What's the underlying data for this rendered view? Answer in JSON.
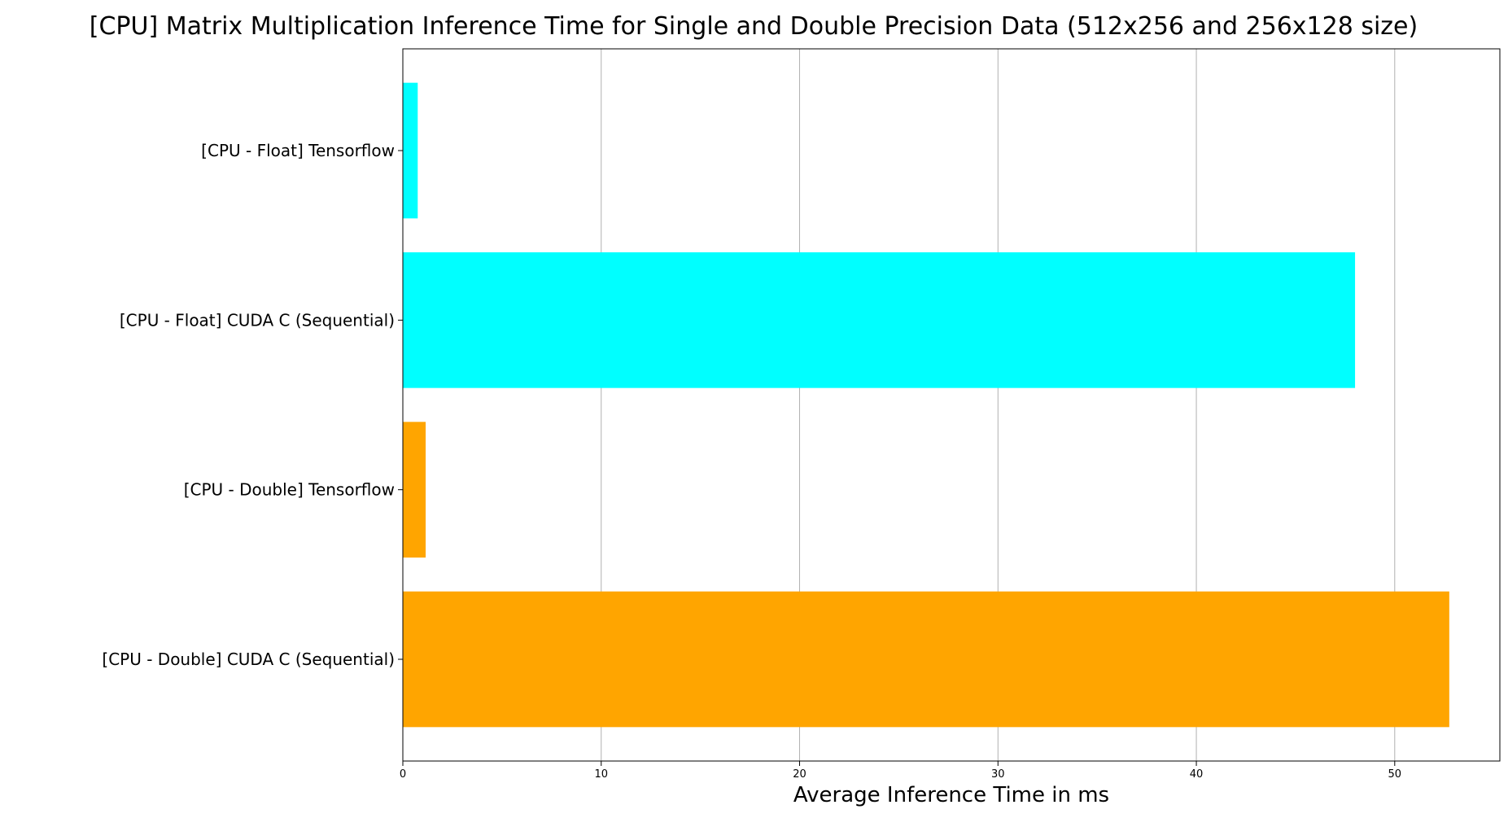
{
  "chart_data": {
    "type": "bar",
    "orientation": "horizontal",
    "title": "[CPU] Matrix Multiplication Inference Time for Single and Double Precision Data (512x256 and 256x128 size)",
    "xlabel": "Average Inference Time in ms",
    "ylabel": "",
    "categories": [
      "[CPU - Float] Tensorflow",
      "[CPU - Float] CUDA C (Sequential)",
      "[CPU - Double] Tensorflow",
      "[CPU - Double] CUDA C (Sequential)"
    ],
    "values": [
      0.75,
      48.0,
      1.15,
      52.75
    ],
    "colors": [
      "#00ffff",
      "#00ffff",
      "#ffa500",
      "#ffa500"
    ],
    "xlim": [
      0,
      55.3
    ],
    "xticks": [
      0,
      10,
      20,
      30,
      40,
      50
    ],
    "xtick_labels": [
      "0",
      "10",
      "20",
      "30",
      "40",
      "50"
    ],
    "grid": "vertical",
    "legend": "none"
  }
}
